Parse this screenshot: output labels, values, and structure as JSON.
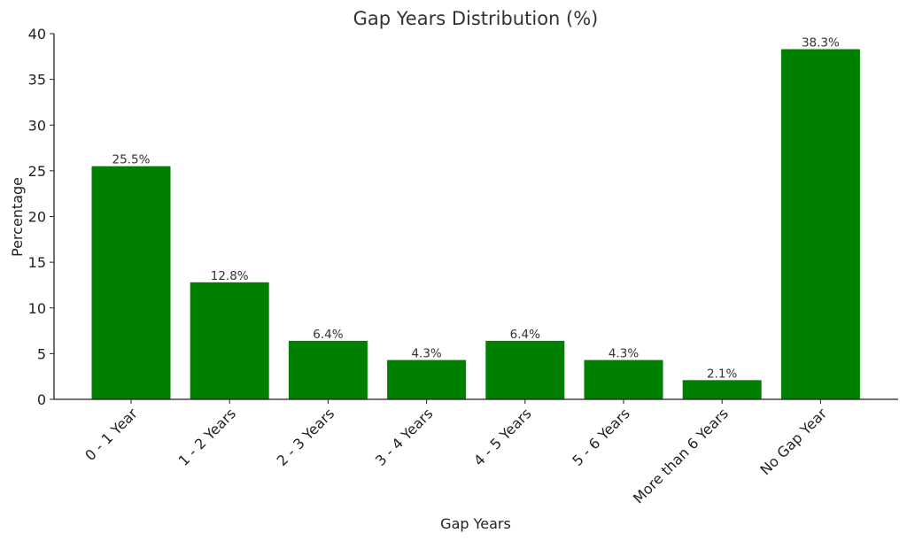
{
  "chart_data": {
    "type": "bar",
    "title": "Gap Years Distribution (%)",
    "xlabel": "Gap Years",
    "ylabel": "Percentage",
    "categories": [
      "0 - 1 Year",
      "1 - 2 Years",
      "2 - 3 Years",
      "3 - 4 Years",
      "4 - 5 Years",
      "5 - 6 Years",
      "More than 6 Years",
      "No Gap Year"
    ],
    "values": [
      25.5,
      12.8,
      6.4,
      4.3,
      6.4,
      4.3,
      2.1,
      38.3
    ],
    "data_labels": [
      "25.5%",
      "12.8%",
      "6.4%",
      "4.3%",
      "6.4%",
      "4.3%",
      "2.1%",
      "38.3%"
    ],
    "ylim": [
      0,
      40
    ],
    "yticks": [
      0,
      5,
      10,
      15,
      20,
      25,
      30,
      35,
      40
    ],
    "grid": false,
    "bar_color": "#008000"
  }
}
